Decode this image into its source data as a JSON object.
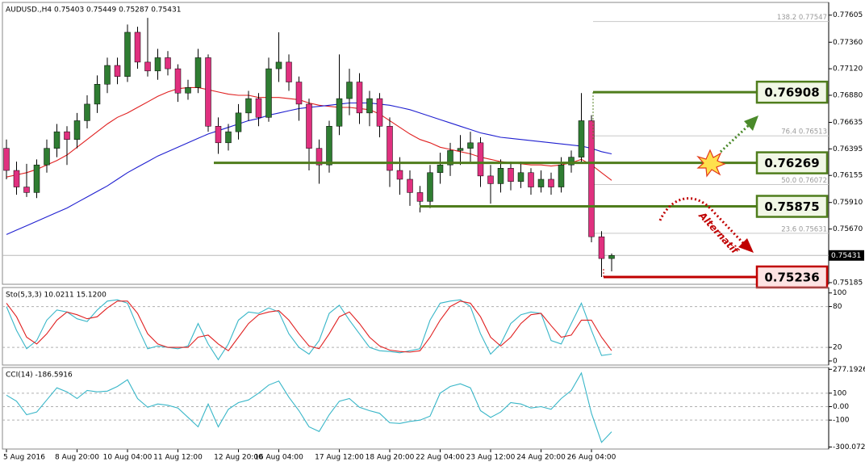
{
  "chart_data": [
    {
      "type": "candlestick",
      "title": "AUDUSD.,H4 0.75403 0.75449 0.75287 0.75431",
      "categories": [
        "5 Aug 2016",
        null,
        null,
        null,
        null,
        null,
        null,
        "8 Aug 20:00",
        null,
        null,
        null,
        null,
        "10 Aug 04:00",
        null,
        null,
        null,
        null,
        "11 Aug 12:00",
        null,
        null,
        null,
        null,
        null,
        "12 Aug 20:00",
        null,
        null,
        null,
        "16 Aug 04:00",
        null,
        null,
        null,
        null,
        null,
        "17 Aug 12:00",
        null,
        null,
        null,
        null,
        "18 Aug 20:00",
        null,
        null,
        null,
        null,
        "22 Aug 04:00",
        null,
        null,
        null,
        null,
        "23 Aug 12:00",
        null,
        null,
        null,
        null,
        "24 Aug 20:00",
        null,
        null,
        null,
        null,
        "26 Aug 04:00",
        null,
        null
      ],
      "ohlc": [
        [
          0.764,
          0.7648,
          0.7612,
          0.762
        ],
        [
          0.762,
          0.7628,
          0.7598,
          0.7605
        ],
        [
          0.7605,
          0.7626,
          0.7596,
          0.76
        ],
        [
          0.76,
          0.763,
          0.7595,
          0.7625
        ],
        [
          0.7625,
          0.7648,
          0.7618,
          0.764
        ],
        [
          0.764,
          0.7662,
          0.7632,
          0.7655
        ],
        [
          0.7655,
          0.766,
          0.7625,
          0.7648
        ],
        [
          0.7648,
          0.7672,
          0.764,
          0.7665
        ],
        [
          0.7665,
          0.7688,
          0.7658,
          0.768
        ],
        [
          0.768,
          0.7706,
          0.7672,
          0.7698
        ],
        [
          0.7698,
          0.7722,
          0.769,
          0.7715
        ],
        [
          0.7715,
          0.7722,
          0.7698,
          0.7705
        ],
        [
          0.7705,
          0.7752,
          0.77,
          0.7745
        ],
        [
          0.7745,
          0.775,
          0.7712,
          0.7718
        ],
        [
          0.7718,
          0.7758,
          0.7705,
          0.771
        ],
        [
          0.771,
          0.773,
          0.7702,
          0.7722
        ],
        [
          0.7722,
          0.7728,
          0.7706,
          0.7712
        ],
        [
          0.7712,
          0.7716,
          0.7682,
          0.769
        ],
        [
          0.769,
          0.7702,
          0.7684,
          0.7695
        ],
        [
          0.7695,
          0.773,
          0.769,
          0.7722
        ],
        [
          0.7722,
          0.7725,
          0.7655,
          0.766
        ],
        [
          0.766,
          0.7668,
          0.7635,
          0.7645
        ],
        [
          0.7645,
          0.7662,
          0.7638,
          0.7655
        ],
        [
          0.7655,
          0.768,
          0.7648,
          0.7672
        ],
        [
          0.7672,
          0.7692,
          0.7665,
          0.7685
        ],
        [
          0.7685,
          0.769,
          0.766,
          0.7668
        ],
        [
          0.7668,
          0.7722,
          0.7664,
          0.7712
        ],
        [
          0.7712,
          0.7745,
          0.77,
          0.7718
        ],
        [
          0.7718,
          0.7725,
          0.7692,
          0.77
        ],
        [
          0.77,
          0.7705,
          0.7665,
          0.768
        ],
        [
          0.768,
          0.7685,
          0.762,
          0.764
        ],
        [
          0.764,
          0.7648,
          0.7608,
          0.7625
        ],
        [
          0.7625,
          0.7665,
          0.7618,
          0.766
        ],
        [
          0.766,
          0.7725,
          0.7652,
          0.7685
        ],
        [
          0.7685,
          0.7712,
          0.767,
          0.77
        ],
        [
          0.77,
          0.7708,
          0.7662,
          0.7672
        ],
        [
          0.7672,
          0.7692,
          0.766,
          0.7685
        ],
        [
          0.7685,
          0.769,
          0.765,
          0.766
        ],
        [
          0.766,
          0.7668,
          0.7605,
          0.762
        ],
        [
          0.762,
          0.7632,
          0.7598,
          0.7612
        ],
        [
          0.7612,
          0.762,
          0.7588,
          0.76
        ],
        [
          0.76,
          0.7606,
          0.7582,
          0.7592
        ],
        [
          0.7592,
          0.7625,
          0.7586,
          0.7618
        ],
        [
          0.7618,
          0.7636,
          0.7608,
          0.7625
        ],
        [
          0.7625,
          0.7645,
          0.7615,
          0.7638
        ],
        [
          0.7638,
          0.7652,
          0.7625,
          0.764
        ],
        [
          0.764,
          0.7655,
          0.7628,
          0.7645
        ],
        [
          0.7645,
          0.765,
          0.7605,
          0.7615
        ],
        [
          0.7615,
          0.7625,
          0.759,
          0.7608
        ],
        [
          0.7608,
          0.763,
          0.76,
          0.7622
        ],
        [
          0.7622,
          0.7628,
          0.7602,
          0.761
        ],
        [
          0.761,
          0.7628,
          0.7604,
          0.7618
        ],
        [
          0.7618,
          0.7622,
          0.7598,
          0.7605
        ],
        [
          0.7605,
          0.762,
          0.76,
          0.7612
        ],
        [
          0.7612,
          0.7618,
          0.7598,
          0.7605
        ],
        [
          0.7605,
          0.7632,
          0.76,
          0.7625
        ],
        [
          0.7625,
          0.7638,
          0.7618,
          0.7632
        ],
        [
          0.7632,
          0.769,
          0.7626,
          0.7665
        ],
        [
          0.7665,
          0.767,
          0.7555,
          0.756
        ],
        [
          0.756,
          0.7565,
          0.75236,
          0.75403
        ],
        [
          0.75403,
          0.75449,
          0.75287,
          0.75431
        ]
      ],
      "bull_color": "#2f7d32",
      "bear_color": "#e0307f",
      "series": [
        {
          "color": "#e02020",
          "values": [
            0.7614,
            0.7616,
            0.7618,
            0.7621,
            0.7625,
            0.7629,
            0.7634,
            0.7641,
            0.7648,
            0.7655,
            0.7662,
            0.7668,
            0.7672,
            0.7677,
            0.7682,
            0.7687,
            0.7691,
            0.7694,
            0.7695,
            0.7695,
            0.7693,
            0.7691,
            0.7689,
            0.7688,
            0.7688,
            0.7686,
            0.7686,
            0.7686,
            0.7685,
            0.7684,
            0.7681,
            0.7679,
            0.7678,
            0.7677,
            0.7677,
            0.7676,
            0.7675,
            0.7671,
            0.7665,
            0.7659,
            0.7653,
            0.7648,
            0.7645,
            0.7641,
            0.7639,
            0.7637,
            0.7635,
            0.7632,
            0.763,
            0.7628,
            0.7627,
            0.7626,
            0.7625,
            0.7625,
            0.7624,
            0.7625,
            0.7627,
            0.763,
            0.7625,
            0.7618,
            0.7611
          ]
        },
        {
          "color": "#1f1fd0",
          "values": [
            0.7562,
            0.7566,
            0.757,
            0.7574,
            0.7578,
            0.7582,
            0.7586,
            0.7591,
            0.7596,
            0.7601,
            0.7606,
            0.7612,
            0.7618,
            0.7623,
            0.7628,
            0.7633,
            0.7637,
            0.7641,
            0.7645,
            0.7649,
            0.7653,
            0.7656,
            0.7659,
            0.7662,
            0.7665,
            0.7667,
            0.767,
            0.7672,
            0.7674,
            0.7676,
            0.7677,
            0.7678,
            0.7679,
            0.768,
            0.7681,
            0.7681,
            0.7681,
            0.768,
            0.7679,
            0.7677,
            0.7675,
            0.7672,
            0.7669,
            0.7666,
            0.7663,
            0.766,
            0.7657,
            0.7654,
            0.7652,
            0.765,
            0.7649,
            0.7648,
            0.7647,
            0.7646,
            0.7645,
            0.7644,
            0.7643,
            0.7642,
            0.764,
            0.7637,
            0.7635
          ]
        }
      ],
      "ylim": [
        0.7517,
        0.7772
      ],
      "yticks": [
        0.77605,
        {
          "value": 0.7736,
          "label": "0.77360"
        },
        {
          "value": 0.7712,
          "label": "0.77120"
        },
        {
          "value": 0.7688,
          "label": "0.76880"
        },
        0.76635,
        0.76395,
        0.76155,
        {
          "value": 0.7591,
          "label": "0.75910"
        },
        {
          "value": 0.7567,
          "label": "0.75670"
        },
        0.75185
      ],
      "current_price": 0.75431,
      "levels": [
        {
          "value": 0.76908,
          "color": "#4f7d1c"
        },
        {
          "value": 0.76269,
          "color": "#4f7d1c"
        },
        {
          "value": 0.75875,
          "color": "#4f7d1c"
        },
        {
          "value": 0.75236,
          "color": "#c00000"
        }
      ],
      "fib": [
        {
          "label": "138.2 0.77547",
          "value": 0.77547
        },
        {
          "label": "76.4 0.76513",
          "value": 0.76513
        },
        {
          "label": "50.0 0.76072",
          "value": 0.76072
        },
        {
          "label": "23.6 0.75631",
          "value": 0.75631
        }
      ],
      "annotation": "Alternatif"
    },
    {
      "type": "line",
      "title": "Sto(5,3,3) 10.0211 15.1200",
      "series": [
        {
          "color": "#38b6c8",
          "values": [
            80,
            45,
            18,
            30,
            60,
            75,
            72,
            62,
            58,
            75,
            88,
            90,
            85,
            50,
            18,
            22,
            20,
            18,
            22,
            55,
            25,
            2,
            25,
            60,
            72,
            70,
            78,
            72,
            40,
            20,
            10,
            30,
            70,
            82,
            60,
            40,
            20,
            15,
            14,
            12,
            15,
            18,
            60,
            85,
            88,
            90,
            80,
            40,
            10,
            25,
            55,
            68,
            72,
            70,
            30,
            25,
            55,
            85,
            45,
            8,
            10.0211
          ]
        },
        {
          "color": "#e02020",
          "values": [
            85,
            65,
            35,
            25,
            40,
            60,
            72,
            68,
            62,
            65,
            78,
            88,
            88,
            70,
            40,
            25,
            20,
            20,
            20,
            35,
            38,
            25,
            15,
            35,
            55,
            68,
            72,
            74,
            60,
            40,
            22,
            18,
            40,
            65,
            72,
            55,
            35,
            22,
            16,
            14,
            13,
            15,
            35,
            60,
            80,
            88,
            85,
            65,
            35,
            22,
            35,
            55,
            68,
            70,
            52,
            35,
            38,
            60,
            60,
            35,
            15.12
          ]
        }
      ],
      "ylim": [
        -6,
        108
      ],
      "yticks": [
        100,
        80,
        20,
        0
      ],
      "levels": [
        80,
        20
      ]
    },
    {
      "type": "line",
      "title": "CCI(14) -186.5916",
      "series": [
        {
          "color": "#38b6c8",
          "values": [
            85,
            40,
            -60,
            -40,
            50,
            140,
            110,
            60,
            120,
            110,
            115,
            150,
            200,
            60,
            -5,
            20,
            10,
            -10,
            -80,
            -150,
            20,
            -150,
            -20,
            30,
            50,
            100,
            160,
            190,
            70,
            -30,
            -150,
            -185,
            -60,
            40,
            60,
            -5,
            -30,
            -50,
            -120,
            -125,
            -110,
            -100,
            -70,
            100,
            150,
            170,
            140,
            -30,
            -80,
            -40,
            30,
            20,
            -10,
            0,
            -20,
            60,
            120,
            250,
            -50,
            -265,
            -186.5916
          ]
        }
      ],
      "ylim": [
        -315,
        291
      ],
      "yticks": [
        277.1926,
        100,
        {
          "value": 0,
          "label": "0.00"
        },
        -100,
        -300.0727
      ],
      "levels": [
        100,
        0,
        -100
      ]
    }
  ]
}
